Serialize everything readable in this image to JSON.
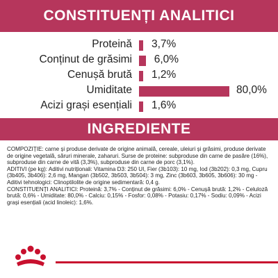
{
  "header": {
    "title": "CONSTITUENȚI ANALITICI"
  },
  "chart_data": {
    "type": "bar",
    "orientation": "horizontal",
    "categories": [
      "Proteină",
      "Conținut de grăsimi",
      "Cenușă brută",
      "Umiditate",
      "Acizi grași esențiali"
    ],
    "values": [
      3.7,
      6.0,
      1.2,
      80.0,
      1.6
    ],
    "value_labels": [
      "3,7%",
      "6,0%",
      "1,2%",
      "80,0%",
      "1,6%"
    ],
    "xlim": [
      0,
      80
    ],
    "grid": false,
    "bar_color": "#b6365c"
  },
  "ingredients": {
    "title": "INGREDIENTE",
    "paragraphs": [
      "COMPOZIȚIE: carne și produse derivate de origine animală, cereale, uleiuri și grăsimi, produse derivate de origine vegetală, săruri minerale, zaharuri. Surse de proteine: subproduse din carne de pasăre (16%), subproduse din carne de vită (3,3%), subproduse din carne de porc (3,1%).",
      "ADITIVI (pe kg): Aditivi nutriționali: Vitamina D3: 250 UI, Fier (3b103): 10 mg, Iod (3b202): 0,3 mg, Cupru (3b405, 3b406): 2,6 mg, Mangan (3b502, 3b503, 3b504): 3 mg, Zinc (3b603, 3b605, 3b606): 30 mg - Aditivi tehnologici: Clinoptilolite de origine sedimentară: 0,4 g.",
      "CONSTITUENȚI ANALITICI: Proteină: 3,7% - Conținut de grăsimi: 6,0% - Cenușă brută: 1,2% - Celuloză brută: 0,6% - Umiditate: 80,0% - Calciu: 0,15% - Fosfor: 0,08% - Potasiu: 0,17% - Sodiu: 0,09% - Acizi grași esențiali (acid linoleic): 1,6%."
    ]
  },
  "brand": {
    "logo_icon": "royal-canin-crown-icon",
    "accent_color": "#b6365c",
    "stripe_color": "#c8102e"
  }
}
